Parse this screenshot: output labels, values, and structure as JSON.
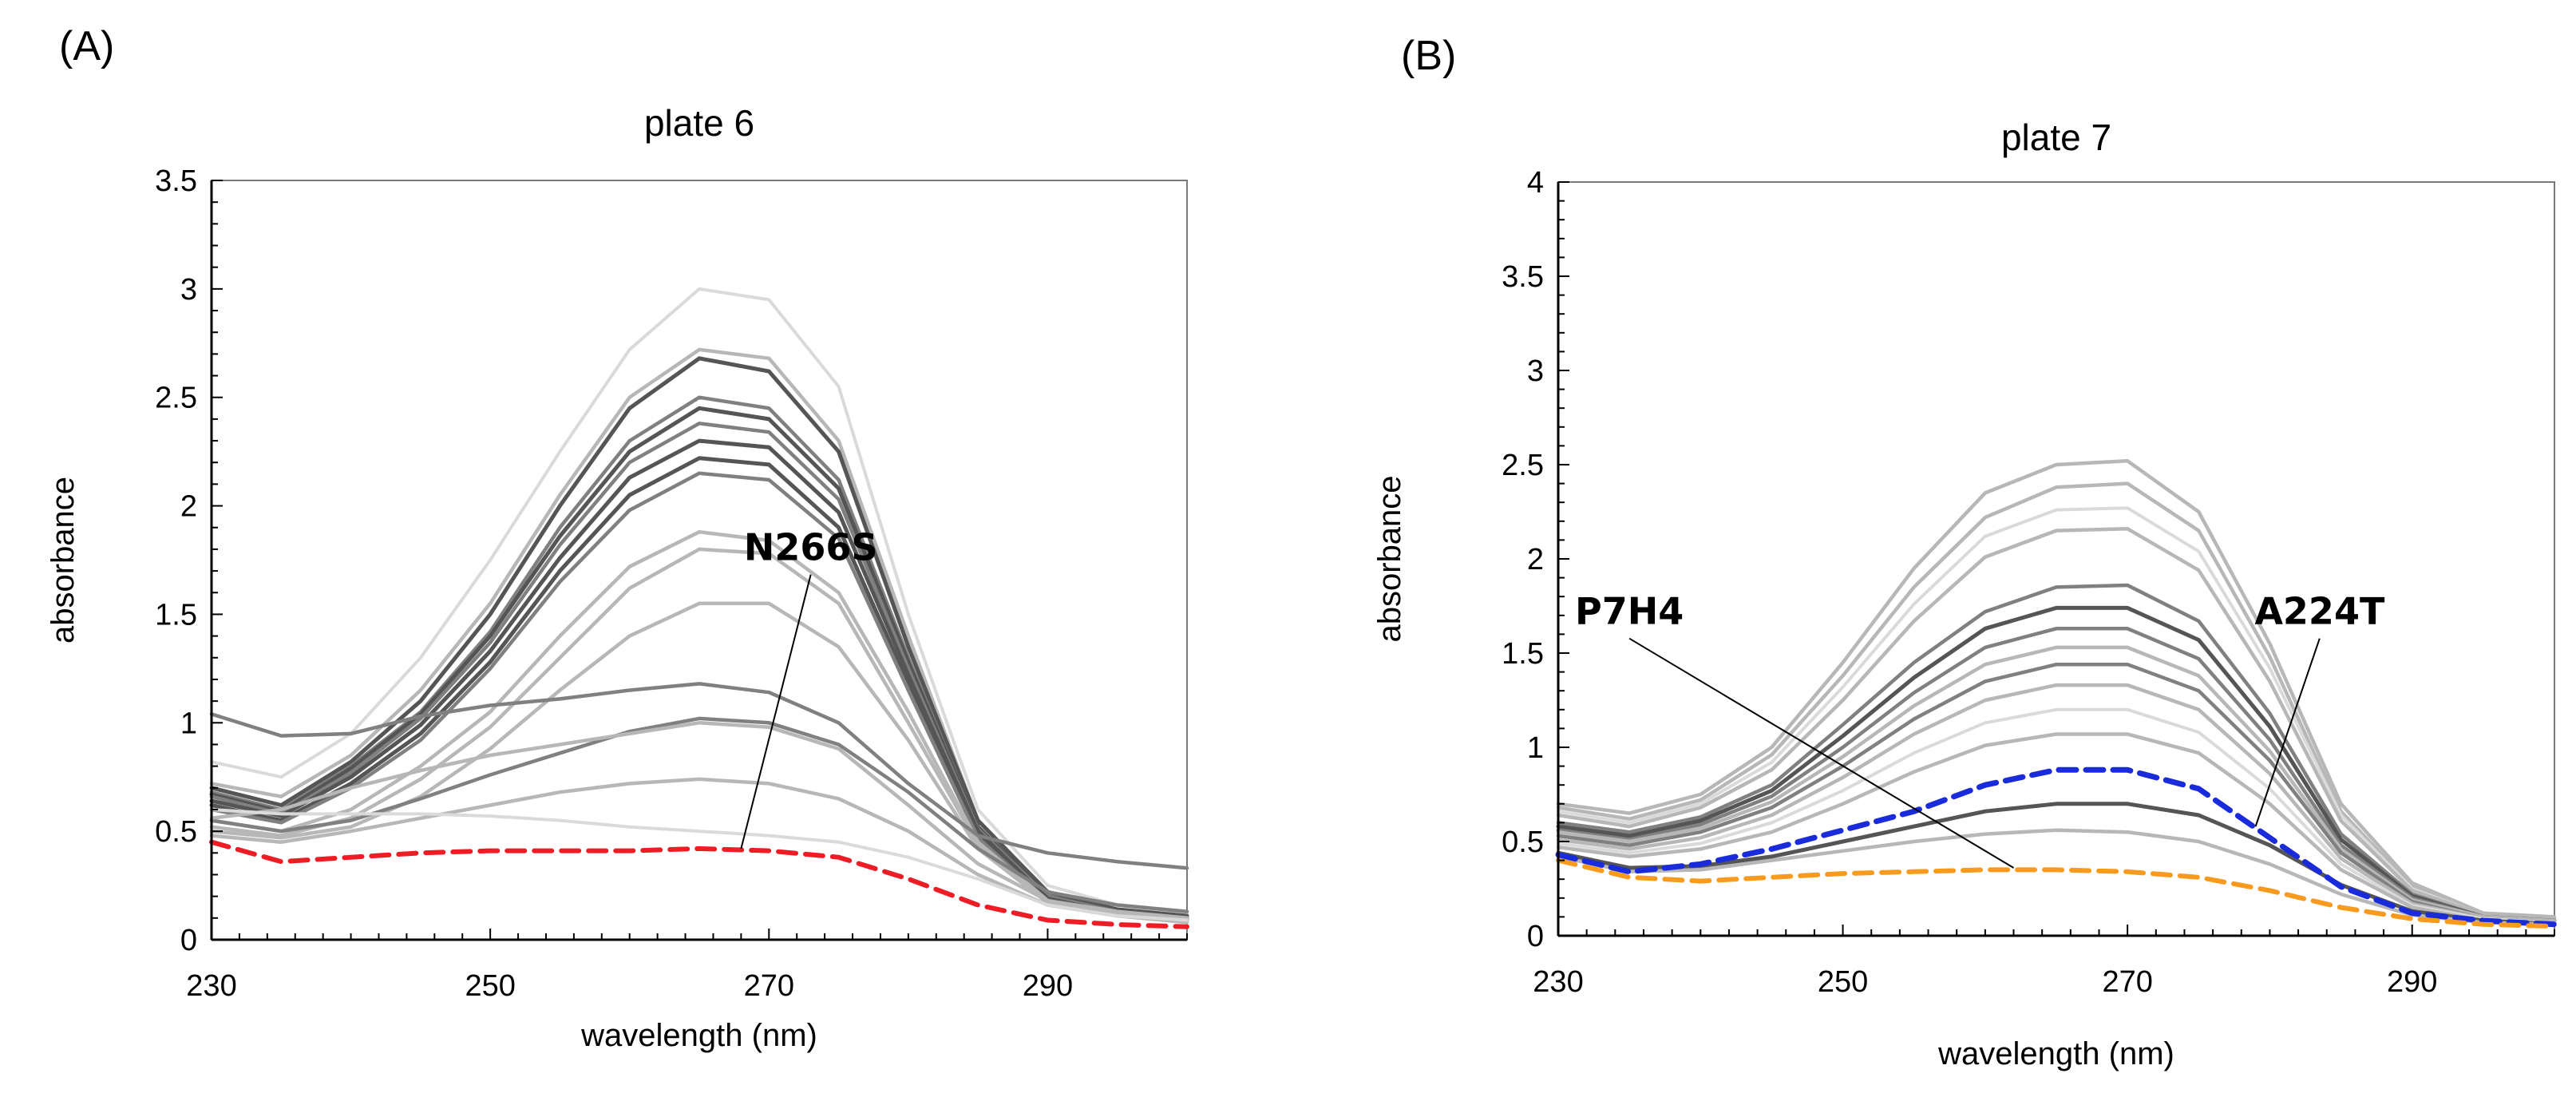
{
  "panels": [
    {
      "letter": "(A)"
    },
    {
      "letter": "(B)"
    }
  ],
  "colors": {
    "dark": "#555555",
    "mid": "#808080",
    "light": "#b7b7b7",
    "pale": "#dadada",
    "red": "#ee1c24",
    "blue": "#1a2bdb",
    "orange": "#f79a1e",
    "axis": "#000000",
    "leader": "#000000"
  },
  "chart_data": [
    {
      "type": "line",
      "title": "plate 6",
      "xlabel": "wavelength (nm)",
      "ylabel": "absorbance",
      "xlim": [
        230,
        300
      ],
      "ylim": [
        0,
        3.5
      ],
      "x_ticks": [
        230,
        250,
        270,
        290
      ],
      "x_tick_labels": [
        "230",
        "250",
        "270",
        "290"
      ],
      "y_ticks": [
        0,
        0.5,
        1,
        1.5,
        2,
        2.5,
        3,
        3.5
      ],
      "y_tick_labels": [
        "0",
        "0.5",
        "1",
        "1.5",
        "2",
        "2.5",
        "3",
        "3.5"
      ],
      "x": [
        230,
        235,
        240,
        245,
        250,
        255,
        260,
        265,
        270,
        275,
        280,
        285,
        290,
        295,
        300
      ],
      "series": [
        {
          "name": "trace-01",
          "tone": "pale",
          "values": [
            0.82,
            0.75,
            0.95,
            1.3,
            1.75,
            2.25,
            2.72,
            3.0,
            2.95,
            2.55,
            1.5,
            0.6,
            0.25,
            0.16,
            0.12
          ]
        },
        {
          "name": "trace-02",
          "tone": "light",
          "values": [
            0.72,
            0.66,
            0.85,
            1.15,
            1.55,
            2.05,
            2.5,
            2.72,
            2.68,
            2.3,
            1.4,
            0.55,
            0.22,
            0.14,
            0.11
          ]
        },
        {
          "name": "trace-03",
          "tone": "dark",
          "values": [
            0.7,
            0.62,
            0.82,
            1.1,
            1.5,
            2.0,
            2.45,
            2.68,
            2.62,
            2.25,
            1.35,
            0.55,
            0.22,
            0.14,
            0.11
          ]
        },
        {
          "name": "trace-04",
          "tone": "mid",
          "values": [
            0.68,
            0.6,
            0.8,
            1.05,
            1.42,
            1.9,
            2.3,
            2.5,
            2.45,
            2.12,
            1.3,
            0.52,
            0.2,
            0.13,
            0.1
          ]
        },
        {
          "name": "trace-05",
          "tone": "dark",
          "values": [
            0.67,
            0.59,
            0.79,
            1.04,
            1.4,
            1.86,
            2.25,
            2.45,
            2.4,
            2.08,
            1.28,
            0.52,
            0.2,
            0.13,
            0.1
          ]
        },
        {
          "name": "trace-06",
          "tone": "mid",
          "values": [
            0.66,
            0.58,
            0.77,
            1.02,
            1.37,
            1.82,
            2.2,
            2.38,
            2.34,
            2.03,
            1.25,
            0.51,
            0.2,
            0.13,
            0.1
          ]
        },
        {
          "name": "trace-07",
          "tone": "dark",
          "values": [
            0.64,
            0.57,
            0.75,
            0.99,
            1.33,
            1.76,
            2.13,
            2.3,
            2.27,
            1.97,
            1.22,
            0.5,
            0.19,
            0.12,
            0.09
          ]
        },
        {
          "name": "trace-08",
          "tone": "dark",
          "values": [
            0.62,
            0.55,
            0.72,
            0.95,
            1.28,
            1.7,
            2.05,
            2.22,
            2.19,
            1.9,
            1.18,
            0.48,
            0.19,
            0.12,
            0.09
          ]
        },
        {
          "name": "trace-09",
          "tone": "mid",
          "values": [
            0.6,
            0.54,
            0.7,
            0.92,
            1.25,
            1.65,
            1.98,
            2.15,
            2.12,
            1.85,
            1.15,
            0.47,
            0.18,
            0.12,
            0.09
          ]
        },
        {
          "name": "trace-10",
          "tone": "light",
          "values": [
            0.55,
            0.5,
            0.6,
            0.8,
            1.05,
            1.4,
            1.72,
            1.88,
            1.84,
            1.6,
            1.05,
            0.45,
            0.18,
            0.12,
            0.09
          ]
        },
        {
          "name": "trace-11",
          "tone": "light",
          "values": [
            0.52,
            0.48,
            0.56,
            0.74,
            0.98,
            1.3,
            1.62,
            1.8,
            1.78,
            1.55,
            1.0,
            0.44,
            0.18,
            0.12,
            0.09
          ]
        },
        {
          "name": "trace-12",
          "tone": "light",
          "values": [
            0.5,
            0.47,
            0.52,
            0.66,
            0.88,
            1.15,
            1.4,
            1.55,
            1.55,
            1.35,
            0.92,
            0.42,
            0.17,
            0.11,
            0.08
          ]
        },
        {
          "name": "trace-13",
          "tone": "mid",
          "values": [
            1.04,
            0.94,
            0.95,
            1.03,
            1.08,
            1.11,
            1.15,
            1.18,
            1.14,
            1.0,
            0.72,
            0.48,
            0.4,
            0.36,
            0.33
          ]
        },
        {
          "name": "trace-14",
          "tone": "mid",
          "values": [
            0.55,
            0.5,
            0.55,
            0.65,
            0.76,
            0.86,
            0.96,
            1.02,
            1.0,
            0.9,
            0.68,
            0.42,
            0.22,
            0.16,
            0.13
          ]
        },
        {
          "name": "trace-15",
          "tone": "light",
          "values": [
            0.56,
            0.6,
            0.7,
            0.78,
            0.85,
            0.9,
            0.95,
            1.0,
            0.98,
            0.88,
            0.62,
            0.35,
            0.18,
            0.13,
            0.1
          ]
        },
        {
          "name": "trace-16",
          "tone": "light",
          "values": [
            0.48,
            0.45,
            0.5,
            0.56,
            0.62,
            0.68,
            0.72,
            0.74,
            0.72,
            0.65,
            0.5,
            0.3,
            0.16,
            0.11,
            0.09
          ]
        },
        {
          "name": "trace-17",
          "tone": "pale",
          "values": [
            0.6,
            0.58,
            0.58,
            0.58,
            0.57,
            0.55,
            0.52,
            0.5,
            0.48,
            0.45,
            0.38,
            0.28,
            0.16,
            0.11,
            0.09
          ]
        },
        {
          "name": "N266S",
          "tone": "red",
          "dashed": true,
          "values": [
            0.45,
            0.36,
            0.38,
            0.4,
            0.41,
            0.41,
            0.41,
            0.42,
            0.41,
            0.38,
            0.28,
            0.16,
            0.09,
            0.07,
            0.06
          ]
        }
      ],
      "annotations": [
        {
          "text": "N266S",
          "target_x": 268,
          "target_y": 0.42,
          "text_x": 273,
          "text_y": 1.72
        }
      ]
    },
    {
      "type": "line",
      "title": "plate 7",
      "xlabel": "wavelength (nm)",
      "ylabel": "absorbance",
      "xlim": [
        230,
        300
      ],
      "ylim": [
        0,
        4
      ],
      "x_ticks": [
        230,
        250,
        270,
        290
      ],
      "x_tick_labels": [
        "230",
        "250",
        "270",
        "290"
      ],
      "y_ticks": [
        0,
        0.5,
        1,
        1.5,
        2,
        2.5,
        3,
        3.5,
        4
      ],
      "y_tick_labels": [
        "0",
        "0.5",
        "1",
        "1.5",
        "2",
        "2.5",
        "3",
        "3.5",
        "4"
      ],
      "x": [
        230,
        235,
        240,
        245,
        250,
        255,
        260,
        265,
        270,
        275,
        280,
        285,
        290,
        295,
        300
      ],
      "series": [
        {
          "name": "trace-01",
          "tone": "light",
          "values": [
            0.7,
            0.65,
            0.75,
            1.0,
            1.45,
            1.95,
            2.35,
            2.5,
            2.52,
            2.25,
            1.55,
            0.7,
            0.28,
            0.12,
            0.1
          ]
        },
        {
          "name": "trace-02",
          "tone": "light",
          "values": [
            0.68,
            0.62,
            0.72,
            0.96,
            1.38,
            1.85,
            2.22,
            2.38,
            2.4,
            2.15,
            1.48,
            0.66,
            0.26,
            0.12,
            0.09
          ]
        },
        {
          "name": "trace-03",
          "tone": "pale",
          "values": [
            0.66,
            0.6,
            0.7,
            0.92,
            1.32,
            1.76,
            2.12,
            2.26,
            2.27,
            2.04,
            1.42,
            0.64,
            0.25,
            0.11,
            0.09
          ]
        },
        {
          "name": "trace-04",
          "tone": "light",
          "values": [
            0.64,
            0.58,
            0.68,
            0.88,
            1.25,
            1.67,
            2.01,
            2.15,
            2.16,
            1.94,
            1.35,
            0.61,
            0.24,
            0.11,
            0.09
          ]
        },
        {
          "name": "trace-05",
          "tone": "mid",
          "values": [
            0.6,
            0.55,
            0.63,
            0.8,
            1.12,
            1.45,
            1.72,
            1.85,
            1.86,
            1.67,
            1.18,
            0.54,
            0.22,
            0.1,
            0.08
          ]
        },
        {
          "name": "trace-06",
          "tone": "dark",
          "values": [
            0.58,
            0.53,
            0.61,
            0.77,
            1.06,
            1.37,
            1.63,
            1.74,
            1.74,
            1.57,
            1.11,
            0.51,
            0.21,
            0.1,
            0.08
          ]
        },
        {
          "name": "trace-07",
          "tone": "mid",
          "values": [
            0.56,
            0.51,
            0.59,
            0.74,
            1.0,
            1.29,
            1.53,
            1.63,
            1.63,
            1.47,
            1.04,
            0.48,
            0.2,
            0.1,
            0.08
          ]
        },
        {
          "name": "trace-08",
          "tone": "light",
          "values": [
            0.55,
            0.5,
            0.57,
            0.71,
            0.95,
            1.22,
            1.44,
            1.53,
            1.53,
            1.38,
            0.98,
            0.46,
            0.19,
            0.1,
            0.08
          ]
        },
        {
          "name": "trace-09",
          "tone": "mid",
          "values": [
            0.53,
            0.48,
            0.55,
            0.68,
            0.9,
            1.15,
            1.35,
            1.44,
            1.44,
            1.3,
            0.93,
            0.44,
            0.18,
            0.09,
            0.07
          ]
        },
        {
          "name": "trace-10",
          "tone": "light",
          "values": [
            0.51,
            0.46,
            0.52,
            0.64,
            0.84,
            1.07,
            1.25,
            1.33,
            1.33,
            1.2,
            0.86,
            0.41,
            0.17,
            0.09,
            0.07
          ]
        },
        {
          "name": "trace-11",
          "tone": "pale",
          "values": [
            0.49,
            0.44,
            0.49,
            0.6,
            0.77,
            0.97,
            1.13,
            1.2,
            1.2,
            1.08,
            0.78,
            0.38,
            0.16,
            0.09,
            0.07
          ]
        },
        {
          "name": "trace-12",
          "tone": "light",
          "values": [
            0.47,
            0.42,
            0.46,
            0.55,
            0.7,
            0.87,
            1.01,
            1.07,
            1.07,
            0.97,
            0.7,
            0.35,
            0.15,
            0.08,
            0.07
          ]
        },
        {
          "name": "trace-13",
          "tone": "dark",
          "values": [
            0.44,
            0.36,
            0.37,
            0.42,
            0.5,
            0.58,
            0.66,
            0.7,
            0.7,
            0.64,
            0.48,
            0.27,
            0.13,
            0.08,
            0.06
          ]
        },
        {
          "name": "trace-14",
          "tone": "light",
          "values": [
            0.42,
            0.34,
            0.35,
            0.4,
            0.45,
            0.5,
            0.54,
            0.56,
            0.55,
            0.5,
            0.38,
            0.22,
            0.11,
            0.07,
            0.06
          ]
        },
        {
          "name": "A224T",
          "tone": "blue",
          "dashed": true,
          "values": [
            0.43,
            0.34,
            0.38,
            0.46,
            0.56,
            0.66,
            0.8,
            0.88,
            0.88,
            0.78,
            0.52,
            0.26,
            0.12,
            0.08,
            0.06
          ]
        },
        {
          "name": "P7H4",
          "tone": "orange",
          "dashed": true,
          "values": [
            0.4,
            0.31,
            0.29,
            0.31,
            0.33,
            0.34,
            0.35,
            0.35,
            0.34,
            0.31,
            0.24,
            0.15,
            0.09,
            0.06,
            0.05
          ]
        }
      ],
      "annotations": [
        {
          "text": "A224T",
          "target_x": 279,
          "target_y": 0.58,
          "text_x": 283.5,
          "text_y": 1.62
        },
        {
          "text": "P7H4",
          "target_x": 262,
          "target_y": 0.36,
          "text_x": 235,
          "text_y": 1.62
        }
      ]
    }
  ]
}
